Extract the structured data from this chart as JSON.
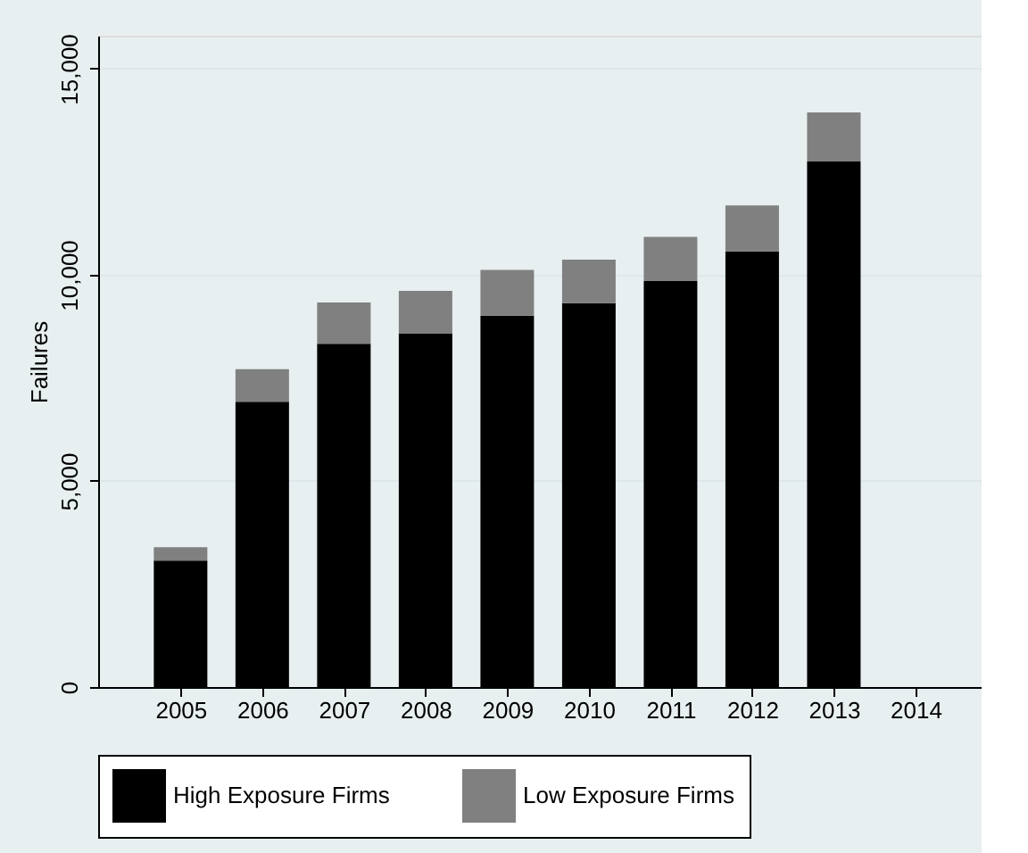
{
  "chart_data": {
    "type": "bar",
    "ylabel": "Failures",
    "stacked": true,
    "categories": [
      "2005",
      "2006",
      "2007",
      "2008",
      "2009",
      "2010",
      "2011",
      "2012",
      "2013",
      "2014"
    ],
    "series": [
      {
        "name": "High Exposure Firms",
        "color": "#000000",
        "values": [
          3070,
          6920,
          8330,
          8570,
          9010,
          9310,
          9850,
          10570,
          12750,
          null
        ]
      },
      {
        "name": "Low Exposure Firms",
        "color": "#808080",
        "values": [
          320,
          790,
          1000,
          1040,
          1110,
          1060,
          1070,
          1110,
          1190,
          null
        ]
      }
    ],
    "ylim": [
      0,
      15800
    ],
    "yticks": [
      {
        "value": 0,
        "label": "0"
      },
      {
        "value": 5000,
        "label": "5,000"
      },
      {
        "value": 10000,
        "label": "10,000"
      },
      {
        "value": 15000,
        "label": "15,000"
      }
    ],
    "grid": "y",
    "legend": "bottom"
  }
}
